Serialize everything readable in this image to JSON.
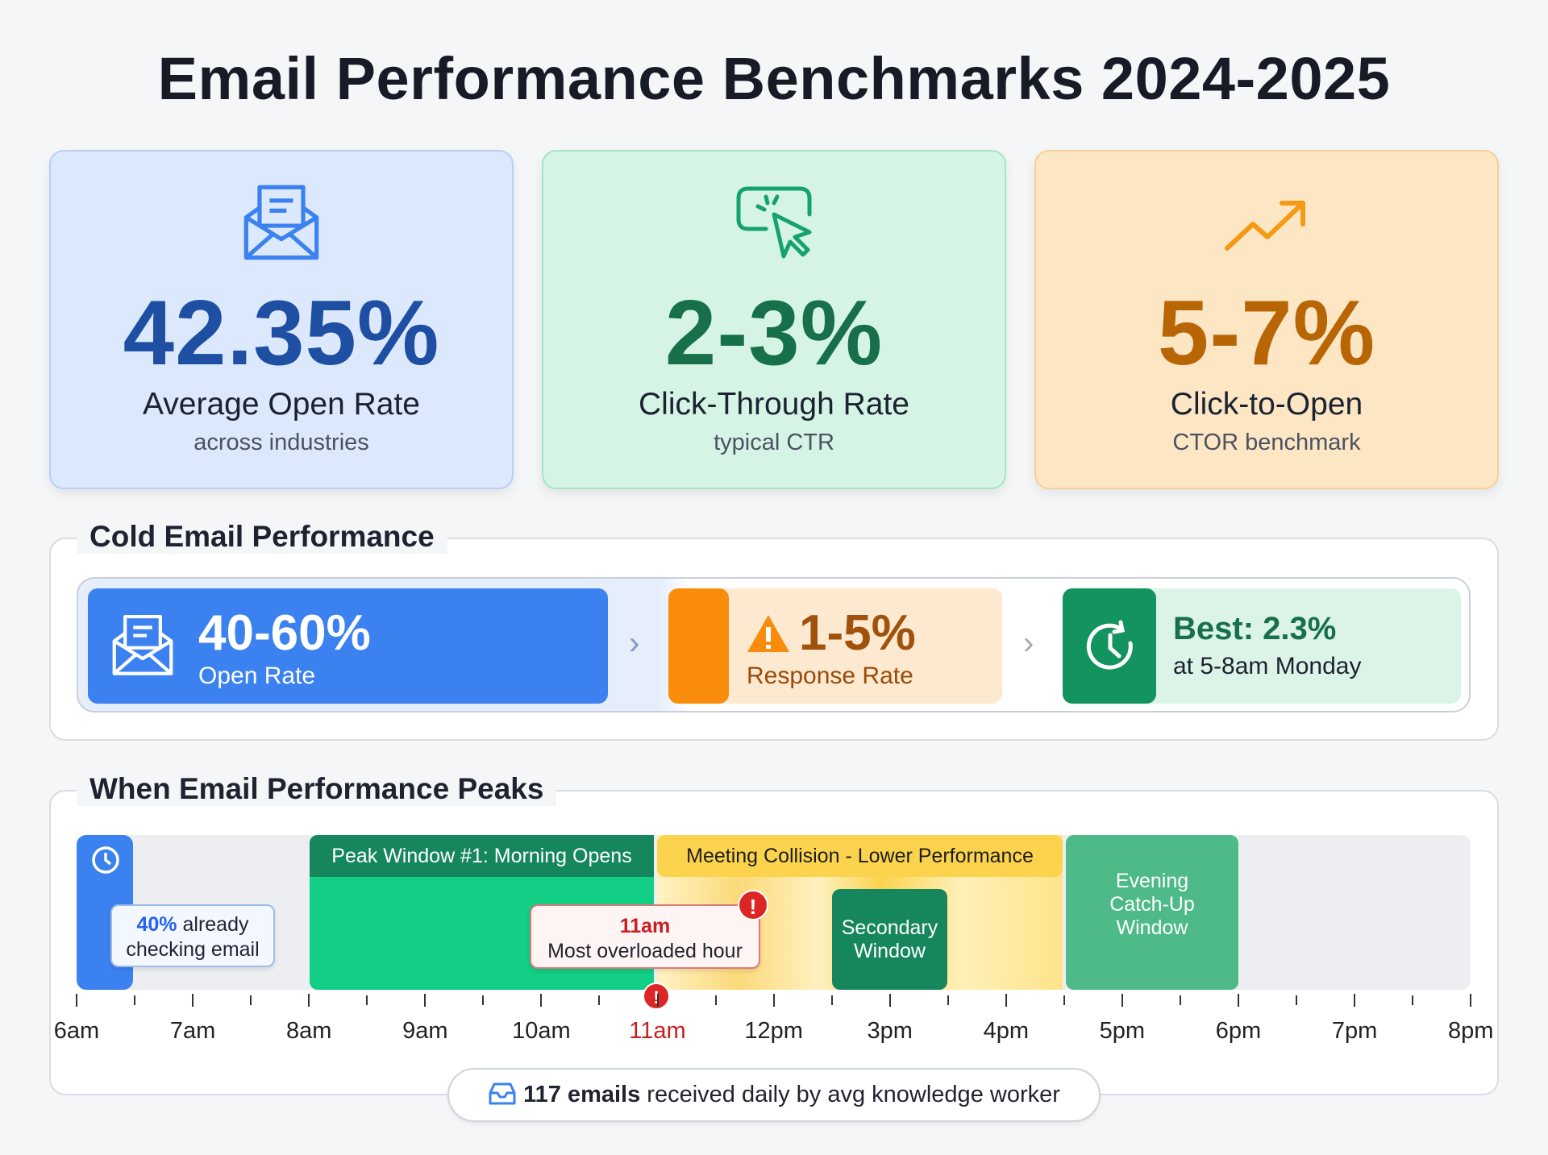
{
  "title": "Email Performance Benchmarks 2024-2025",
  "cards": [
    {
      "value": "42.35%",
      "label": "Average Open Rate",
      "sub": "across industries",
      "icon": "envelope-open-icon",
      "color": "#1e4fa3"
    },
    {
      "value": "2-3%",
      "label": "Click-Through Rate",
      "sub": "typical CTR",
      "icon": "cursor-click-icon",
      "color": "#17704a"
    },
    {
      "value": "5-7%",
      "label": "Click-to-Open",
      "sub": "CTOR benchmark",
      "icon": "trend-up-icon",
      "color": "#b86506"
    }
  ],
  "cold": {
    "title": "Cold Email Performance",
    "open": {
      "value": "40-60%",
      "label": "Open Rate"
    },
    "response": {
      "value": "1-5%",
      "label": "Response Rate"
    },
    "best": {
      "value": "Best: 2.3%",
      "label": "at 5-8am Monday"
    }
  },
  "timeline": {
    "title": "When Email Performance Peaks",
    "peak1": "Peak Window #1: Morning Opens",
    "meeting": "Meeting Collision - Lower Performance",
    "secondary": "Secondary Window",
    "evening": "Evening Catch-Up Window",
    "early_pct": "40%",
    "early_text": " already checking email",
    "overload_time": "11am",
    "overload_text": "Most overloaded hour",
    "hours": [
      "6am",
      "7am",
      "8am",
      "9am",
      "10am",
      "11am",
      "12pm",
      "3pm",
      "4pm",
      "5pm",
      "6pm",
      "7pm",
      "8pm"
    ],
    "highlight_hour": "11am"
  },
  "footer": {
    "bold": "117 emails",
    "rest": " received daily by avg knowledge worker"
  },
  "colors": {
    "blue": "#3b82f0",
    "green": "#12cf85",
    "dark_green": "#16875d",
    "yellow": "#fcd34d",
    "orange": "#f98c0b",
    "red": "#dc2626"
  }
}
